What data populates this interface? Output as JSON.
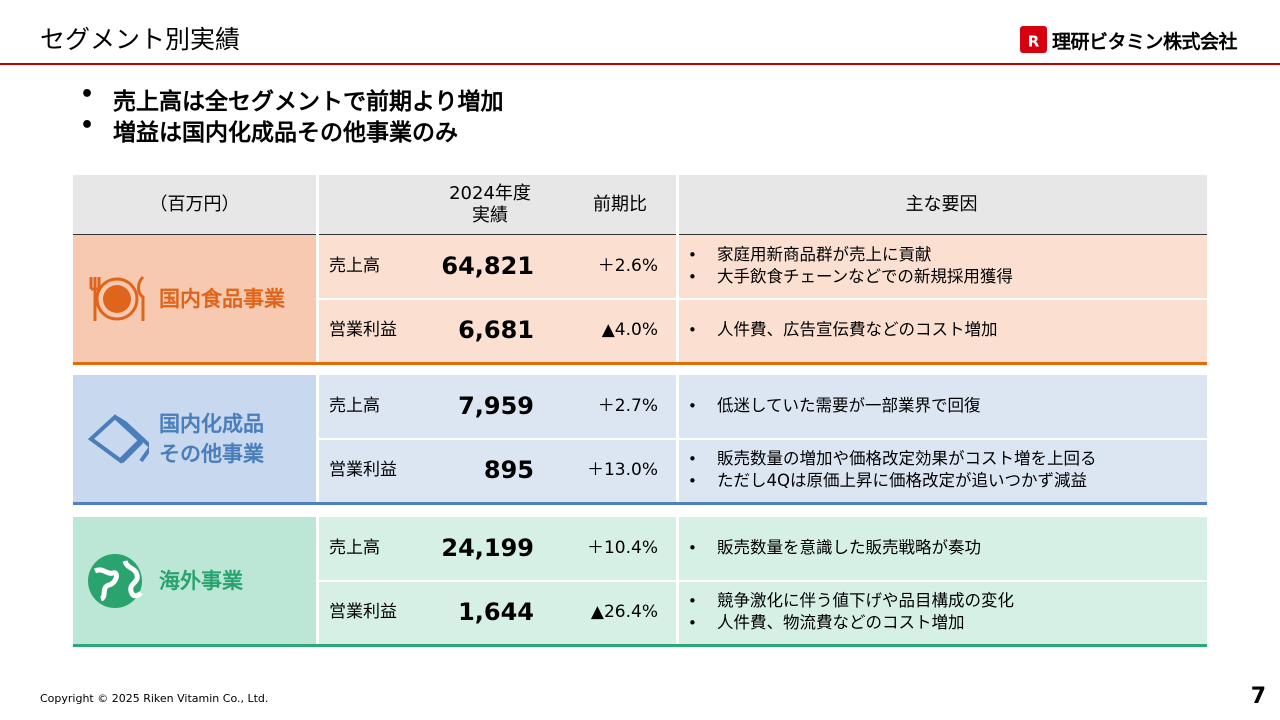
{
  "header": {
    "title": "セグメント別実績",
    "logo": "理研ビタミン株式会社"
  },
  "bullets": [
    "売上高は全セグメントで前期より増加",
    "増益は国内化成品その他事業のみ"
  ],
  "table": {
    "columns": [
      {
        "lines": [
          "（百万円）"
        ]
      },
      {
        "lines": [
          "2024年度",
          "実績"
        ]
      },
      {
        "lines": [
          "前期比"
        ]
      },
      {
        "lines": [
          "主な要因"
        ]
      }
    ],
    "segments": [
      {
        "name_lines": [
          "国内食品事業"
        ],
        "rows": [
          {
            "label": "売上高",
            "value": "64,821",
            "change": "＋2.6%",
            "reasons": [
              "家庭用新商品群が売上に貢献",
              "大手飲食チェーンなどでの新規採用獲得"
            ]
          },
          {
            "label": "営業利益",
            "value": "6,681",
            "change": "▲4.0%",
            "reasons": [
              "人件費、広告宣伝費などのコスト増加"
            ]
          }
        ]
      },
      {
        "name_lines": [
          "国内化成品",
          "その他事業"
        ],
        "rows": [
          {
            "label": "売上高",
            "value": "7,959",
            "change": "＋2.7%",
            "reasons": [
              "低迷していた需要が一部業界で回復"
            ]
          },
          {
            "label": "営業利益",
            "value": "895",
            "change": "＋13.0%",
            "reasons": [
              "販売数量の増加や価格改定効果がコスト増を上回る",
              "ただし4Qは原価上昇に価格改定が追いつかず減益"
            ]
          }
        ]
      },
      {
        "name_lines": [
          "海外事業"
        ],
        "rows": [
          {
            "label": "売上高",
            "value": "24,199",
            "change": "＋10.4%",
            "reasons": [
              "販売数量を意識した販売戦略が奏功"
            ]
          },
          {
            "label": "営業利益",
            "value": "1,644",
            "change": "▲26.4%",
            "reasons": [
              "競争激化に伴う値下げや品目構成の変化",
              "人件費、物流費などのコスト増加"
            ]
          }
        ]
      }
    ]
  },
  "footer": {
    "copyright": "Copyright © 2025 Riken Vitamin Co., Ltd.",
    "page": "7"
  }
}
